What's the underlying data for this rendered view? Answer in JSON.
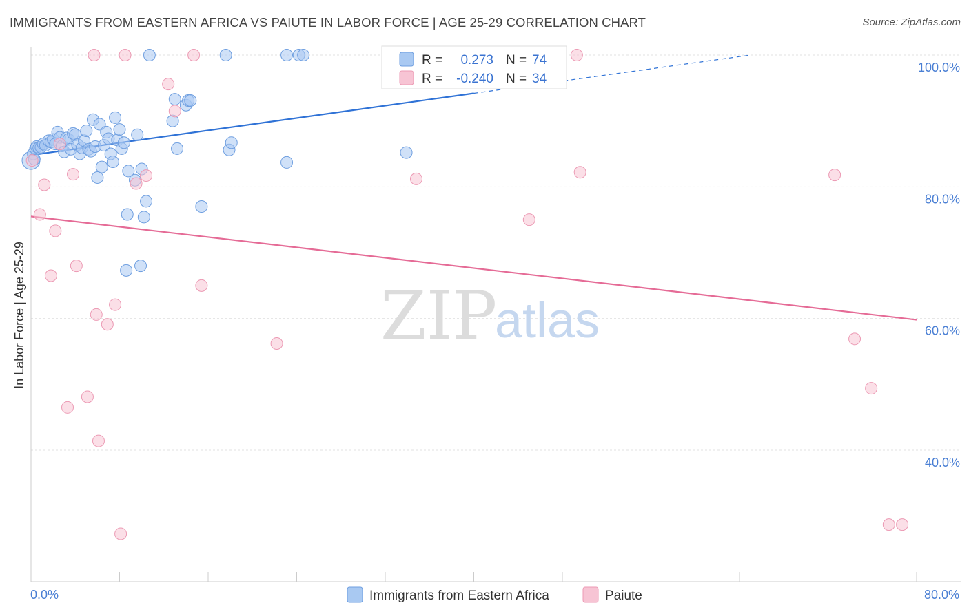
{
  "title": "IMMIGRANTS FROM EASTERN AFRICA VS PAIUTE IN LABOR FORCE | AGE 25-29 CORRELATION CHART",
  "source": "Source: ZipAtlas.com",
  "watermark": {
    "zip": "ZIP",
    "atlas": "atlas"
  },
  "legend": {
    "rows": [
      {
        "r_label": "R =",
        "r_value": "0.273",
        "n_label": "N =",
        "n_value": "74",
        "color": "#a9c9f2",
        "stroke": "#6f9fe0"
      },
      {
        "r_label": "R =",
        "r_value": "-0.240",
        "n_label": "N =",
        "n_value": "34",
        "color": "#f7c4d4",
        "stroke": "#ec9ab4"
      }
    ]
  },
  "bottom_legend": [
    {
      "label": "Immigrants from Eastern Africa",
      "color": "#a9c9f2",
      "stroke": "#6f9fe0"
    },
    {
      "label": "Paiute",
      "color": "#f7c4d4",
      "stroke": "#ec9ab4"
    }
  ],
  "chart_data": {
    "type": "scatter",
    "title": "IMMIGRANTS FROM EASTERN AFRICA VS PAIUTE IN LABOR FORCE | AGE 25-29 CORRELATION CHART",
    "xlabel": "",
    "ylabel": "In Labor Force | Age 25-29",
    "xlim": [
      0,
      80
    ],
    "ylim": [
      20,
      102
    ],
    "x_tick_labels": [
      "0.0%",
      "80.0%"
    ],
    "y_ticks": [
      40,
      60,
      80,
      100
    ],
    "y_tick_labels": [
      "40.0%",
      "60.0%",
      "80.0%",
      "100.0%"
    ],
    "grid": true,
    "legend_position": "top-center",
    "series": [
      {
        "name": "Immigrants from Eastern Africa",
        "color": "#6f9fe0",
        "fill": "#a9c9f2",
        "trend": {
          "x": [
            0,
            40
          ],
          "y": [
            84.8,
            94.2
          ],
          "dashed_to": [
            65,
            100
          ]
        },
        "points": [
          [
            0.2,
            85
          ],
          [
            0.3,
            84.2
          ],
          [
            0.4,
            85.8
          ],
          [
            0.5,
            86.1
          ],
          [
            0.7,
            85.9
          ],
          [
            0.9,
            86
          ],
          [
            1.1,
            86.5
          ],
          [
            1.3,
            86.3
          ],
          [
            1.6,
            87
          ],
          [
            1.8,
            86.8
          ],
          [
            2.0,
            87.2
          ],
          [
            2.2,
            86.5
          ],
          [
            2.4,
            88.3
          ],
          [
            2.6,
            87.5
          ],
          [
            2.8,
            86.2
          ],
          [
            3.0,
            85.3
          ],
          [
            3.2,
            87.4
          ],
          [
            3.4,
            87.2
          ],
          [
            3.6,
            85.7
          ],
          [
            3.8,
            88.1
          ],
          [
            4.0,
            87.9
          ],
          [
            4.2,
            86.4
          ],
          [
            4.4,
            85.0
          ],
          [
            4.6,
            85.9
          ],
          [
            4.8,
            87.0
          ],
          [
            5.0,
            88.5
          ],
          [
            5.2,
            85.7
          ],
          [
            5.4,
            85.4
          ],
          [
            5.6,
            90.2
          ],
          [
            5.8,
            86.1
          ],
          [
            6.0,
            81.4
          ],
          [
            6.2,
            89.5
          ],
          [
            6.4,
            83.0
          ],
          [
            6.6,
            86.3
          ],
          [
            6.8,
            88.3
          ],
          [
            7.0,
            87.3
          ],
          [
            7.2,
            85.0
          ],
          [
            7.4,
            83.8
          ],
          [
            7.6,
            90.5
          ],
          [
            7.8,
            87.1
          ],
          [
            8.0,
            88.7
          ],
          [
            8.2,
            85.8
          ],
          [
            8.4,
            86.7
          ],
          [
            8.6,
            67.3
          ],
          [
            8.7,
            75.8
          ],
          [
            8.8,
            82.4
          ],
          [
            9.4,
            81.0
          ],
          [
            9.6,
            87.9
          ],
          [
            9.9,
            68.0
          ],
          [
            10.0,
            82.7
          ],
          [
            10.2,
            75.4
          ],
          [
            10.4,
            77.8
          ],
          [
            10.7,
            100.0
          ],
          [
            12.8,
            90.0
          ],
          [
            13.0,
            93.3
          ],
          [
            13.2,
            85.8
          ],
          [
            14.0,
            92.4
          ],
          [
            14.2,
            93.1
          ],
          [
            14.4,
            93.1
          ],
          [
            15.4,
            77.0
          ],
          [
            17.6,
            100.0
          ],
          [
            17.9,
            85.6
          ],
          [
            18.1,
            86.7
          ],
          [
            23.1,
            83.7
          ],
          [
            23.1,
            100.0
          ],
          [
            24.2,
            100.0
          ],
          [
            24.6,
            100.0
          ],
          [
            33.9,
            85.2
          ]
        ]
      },
      {
        "name": "Paiute",
        "color": "#ec9ab4",
        "fill": "#f7c4d4",
        "trend": {
          "x": [
            0,
            80
          ],
          "y": [
            75.5,
            59.8
          ]
        },
        "points": [
          [
            0.1,
            84.0
          ],
          [
            0.8,
            75.8
          ],
          [
            1.2,
            80.3
          ],
          [
            1.8,
            66.5
          ],
          [
            2.2,
            73.3
          ],
          [
            2.6,
            86.5
          ],
          [
            3.3,
            46.5
          ],
          [
            3.8,
            81.9
          ],
          [
            4.1,
            68.0
          ],
          [
            5.1,
            48.1
          ],
          [
            5.7,
            100.0
          ],
          [
            5.9,
            60.6
          ],
          [
            6.1,
            41.4
          ],
          [
            6.9,
            59.1
          ],
          [
            7.6,
            62.1
          ],
          [
            8.1,
            27.3
          ],
          [
            8.5,
            100.0
          ],
          [
            9.5,
            80.5
          ],
          [
            10.4,
            81.7
          ],
          [
            12.4,
            95.6
          ],
          [
            13.0,
            91.5
          ],
          [
            14.7,
            100.0
          ],
          [
            15.4,
            65.0
          ],
          [
            22.2,
            56.2
          ],
          [
            34.8,
            81.2
          ],
          [
            45.0,
            75.0
          ],
          [
            49.3,
            100.0
          ],
          [
            49.6,
            82.2
          ],
          [
            72.6,
            81.8
          ],
          [
            74.4,
            56.9
          ],
          [
            75.9,
            49.4
          ],
          [
            77.5,
            28.7
          ],
          [
            78.7,
            28.7
          ]
        ]
      }
    ]
  }
}
